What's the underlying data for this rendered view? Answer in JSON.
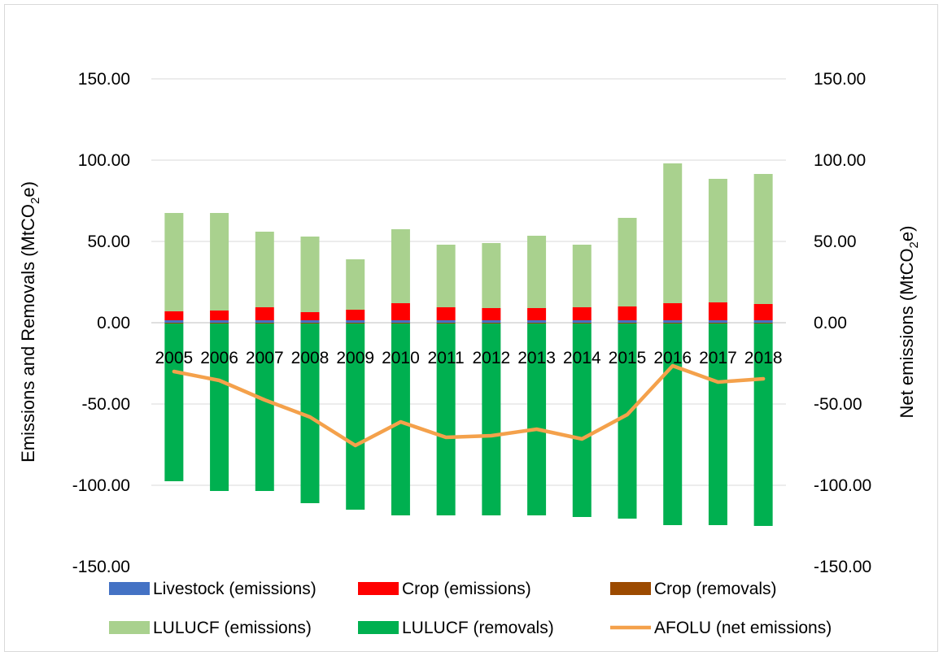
{
  "chart_data": {
    "type": "bar",
    "stacked": true,
    "categories": [
      "2005",
      "2006",
      "2007",
      "2008",
      "2009",
      "2010",
      "2011",
      "2012",
      "2013",
      "2014",
      "2015",
      "2016",
      "2017",
      "2018"
    ],
    "series": [
      {
        "name": "Livestock (emissions)",
        "kind": "bar",
        "color": "#4472c4",
        "values": [
          1.5,
          1.5,
          1.5,
          1.5,
          1.5,
          1.5,
          1.5,
          1.5,
          1.5,
          1.5,
          1.5,
          1.5,
          1.5,
          1.5
        ]
      },
      {
        "name": "Crop (emissions)",
        "kind": "bar",
        "color": "#ff0000",
        "values": [
          5.5,
          6.0,
          8.0,
          5.0,
          6.5,
          10.5,
          8.0,
          7.5,
          7.5,
          8.0,
          8.5,
          10.5,
          11.0,
          10.0
        ]
      },
      {
        "name": "Crop (removals)",
        "kind": "bar",
        "color": "#9c4a00",
        "values": [
          -0.5,
          -0.5,
          -0.5,
          -0.5,
          -0.5,
          -0.5,
          -0.5,
          -0.5,
          -0.5,
          -0.5,
          -0.5,
          -0.5,
          -0.5,
          -0.5
        ]
      },
      {
        "name": "LULUCF (emissions)",
        "kind": "bar",
        "color": "#a9d18e",
        "values": [
          60.5,
          60.0,
          46.5,
          46.5,
          31.0,
          45.5,
          38.5,
          40.0,
          44.5,
          38.5,
          54.5,
          86.0,
          76.0,
          80.0
        ]
      },
      {
        "name": "LULUCF (removals)",
        "kind": "bar",
        "color": "#00b050",
        "values": [
          -97.0,
          -103.0,
          -103.0,
          -110.5,
          -114.5,
          -118.0,
          -118.0,
          -118.0,
          -118.0,
          -119.0,
          -120.0,
          -124.0,
          -124.0,
          -124.5
        ]
      },
      {
        "name": "AFOLU (net emissions)",
        "kind": "line",
        "color": "#f4a14b",
        "values": [
          -30.0,
          -35.5,
          -47.5,
          -58.0,
          -75.5,
          -61.0,
          -70.5,
          -69.5,
          -65.5,
          -71.5,
          -56.5,
          -26.5,
          -36.5,
          -34.5
        ]
      }
    ],
    "ylim": [
      -150,
      150
    ],
    "yticks": [
      "150.00",
      "100.00",
      "50.00",
      "0.00",
      "-50.00",
      "-100.00",
      "-150.00"
    ],
    "y_tick_values": [
      150,
      100,
      50,
      0,
      -50,
      -100,
      -150
    ],
    "ylabel": "Emissions and Removals (MtCO",
    "ylabel_sub": "2",
    "ylabel_tail": "e)",
    "y2label": "Net emissions (MtCO",
    "y2label_sub": "2",
    "y2label_tail": "e)",
    "grid": true,
    "legend_position": "bottom"
  }
}
